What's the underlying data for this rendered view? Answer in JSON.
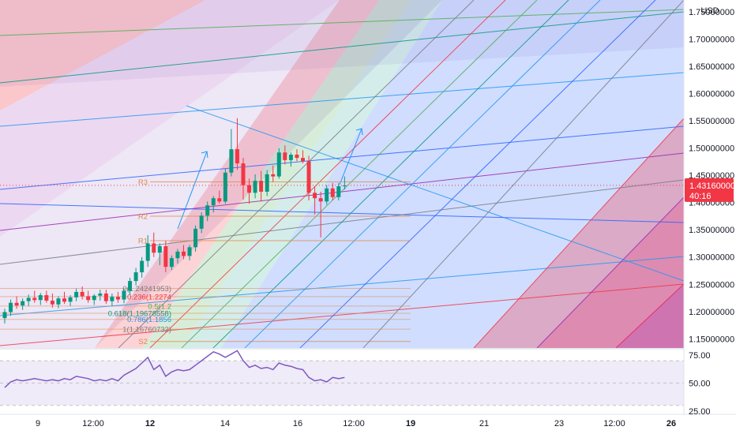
{
  "currency": "USD",
  "chart_data": {
    "type": "candlestick",
    "price_axis": {
      "labels": [
        "1.75000000",
        "1.70000000",
        "1.65000000",
        "1.60000000",
        "1.55000000",
        "1.50000000",
        "1.45000000",
        "1.40000000",
        "1.35000000",
        "1.30000000",
        "1.25000000",
        "1.20000000",
        "1.15000000"
      ],
      "values": [
        1.75,
        1.7,
        1.65,
        1.6,
        1.55,
        1.5,
        1.45,
        1.4,
        1.35,
        1.3,
        1.25,
        1.2,
        1.15
      ],
      "range": [
        1.133,
        1.772
      ]
    },
    "time_axis": {
      "labels": [
        "9",
        "12:00",
        "12",
        "14",
        "16",
        "12:00",
        "19",
        "21",
        "23",
        "12:00",
        "26"
      ],
      "bold": [
        false,
        false,
        true,
        false,
        false,
        false,
        true,
        false,
        false,
        false,
        true
      ]
    },
    "current_price": {
      "value": 1.4316,
      "label": "1.43160000",
      "countdown": "40:16",
      "color": "#f23645"
    },
    "candles": [
      {
        "t": 0,
        "o": 1.188,
        "h": 1.205,
        "l": 1.178,
        "c": 1.199
      },
      {
        "t": 1,
        "o": 1.199,
        "h": 1.222,
        "l": 1.192,
        "c": 1.216
      },
      {
        "t": 2,
        "o": 1.216,
        "h": 1.228,
        "l": 1.205,
        "c": 1.211
      },
      {
        "t": 3,
        "o": 1.211,
        "h": 1.224,
        "l": 1.203,
        "c": 1.219
      },
      {
        "t": 4,
        "o": 1.219,
        "h": 1.231,
        "l": 1.21,
        "c": 1.225
      },
      {
        "t": 5,
        "o": 1.225,
        "h": 1.238,
        "l": 1.216,
        "c": 1.221
      },
      {
        "t": 6,
        "o": 1.221,
        "h": 1.234,
        "l": 1.212,
        "c": 1.23
      },
      {
        "t": 7,
        "o": 1.23,
        "h": 1.238,
        "l": 1.216,
        "c": 1.22
      },
      {
        "t": 8,
        "o": 1.22,
        "h": 1.233,
        "l": 1.207,
        "c": 1.213
      },
      {
        "t": 9,
        "o": 1.213,
        "h": 1.228,
        "l": 1.206,
        "c": 1.224
      },
      {
        "t": 10,
        "o": 1.224,
        "h": 1.236,
        "l": 1.214,
        "c": 1.218
      },
      {
        "t": 11,
        "o": 1.218,
        "h": 1.23,
        "l": 1.21,
        "c": 1.226
      },
      {
        "t": 12,
        "o": 1.226,
        "h": 1.242,
        "l": 1.219,
        "c": 1.236
      },
      {
        "t": 13,
        "o": 1.236,
        "h": 1.246,
        "l": 1.222,
        "c": 1.228
      },
      {
        "t": 14,
        "o": 1.228,
        "h": 1.238,
        "l": 1.216,
        "c": 1.221
      },
      {
        "t": 15,
        "o": 1.221,
        "h": 1.232,
        "l": 1.212,
        "c": 1.229
      },
      {
        "t": 16,
        "o": 1.229,
        "h": 1.24,
        "l": 1.22,
        "c": 1.233
      },
      {
        "t": 17,
        "o": 1.233,
        "h": 1.24,
        "l": 1.214,
        "c": 1.219
      },
      {
        "t": 18,
        "o": 1.219,
        "h": 1.233,
        "l": 1.21,
        "c": 1.227
      },
      {
        "t": 19,
        "o": 1.227,
        "h": 1.236,
        "l": 1.216,
        "c": 1.222
      },
      {
        "t": 20,
        "o": 1.222,
        "h": 1.242,
        "l": 1.215,
        "c": 1.238
      },
      {
        "t": 21,
        "o": 1.238,
        "h": 1.262,
        "l": 1.23,
        "c": 1.256
      },
      {
        "t": 22,
        "o": 1.256,
        "h": 1.28,
        "l": 1.248,
        "c": 1.272
      },
      {
        "t": 23,
        "o": 1.272,
        "h": 1.3,
        "l": 1.262,
        "c": 1.293
      },
      {
        "t": 24,
        "o": 1.293,
        "h": 1.34,
        "l": 1.282,
        "c": 1.325
      },
      {
        "t": 25,
        "o": 1.325,
        "h": 1.345,
        "l": 1.3,
        "c": 1.308
      },
      {
        "t": 26,
        "o": 1.308,
        "h": 1.325,
        "l": 1.285,
        "c": 1.32
      },
      {
        "t": 27,
        "o": 1.32,
        "h": 1.33,
        "l": 1.272,
        "c": 1.282
      },
      {
        "t": 28,
        "o": 1.282,
        "h": 1.303,
        "l": 1.276,
        "c": 1.298
      },
      {
        "t": 29,
        "o": 1.298,
        "h": 1.315,
        "l": 1.288,
        "c": 1.31
      },
      {
        "t": 30,
        "o": 1.31,
        "h": 1.322,
        "l": 1.296,
        "c": 1.302
      },
      {
        "t": 31,
        "o": 1.302,
        "h": 1.322,
        "l": 1.294,
        "c": 1.318
      },
      {
        "t": 32,
        "o": 1.318,
        "h": 1.358,
        "l": 1.31,
        "c": 1.352
      },
      {
        "t": 33,
        "o": 1.352,
        "h": 1.382,
        "l": 1.344,
        "c": 1.376
      },
      {
        "t": 34,
        "o": 1.376,
        "h": 1.402,
        "l": 1.366,
        "c": 1.395
      },
      {
        "t": 35,
        "o": 1.395,
        "h": 1.412,
        "l": 1.382,
        "c": 1.408
      },
      {
        "t": 36,
        "o": 1.408,
        "h": 1.422,
        "l": 1.398,
        "c": 1.402
      },
      {
        "t": 37,
        "o": 1.402,
        "h": 1.462,
        "l": 1.398,
        "c": 1.455
      },
      {
        "t": 38,
        "o": 1.455,
        "h": 1.535,
        "l": 1.448,
        "c": 1.498
      },
      {
        "t": 39,
        "o": 1.498,
        "h": 1.555,
        "l": 1.46,
        "c": 1.472
      },
      {
        "t": 40,
        "o": 1.472,
        "h": 1.482,
        "l": 1.405,
        "c": 1.432
      },
      {
        "t": 41,
        "o": 1.432,
        "h": 1.444,
        "l": 1.398,
        "c": 1.418
      },
      {
        "t": 42,
        "o": 1.418,
        "h": 1.452,
        "l": 1.408,
        "c": 1.44
      },
      {
        "t": 43,
        "o": 1.44,
        "h": 1.458,
        "l": 1.402,
        "c": 1.42
      },
      {
        "t": 44,
        "o": 1.42,
        "h": 1.46,
        "l": 1.412,
        "c": 1.452
      },
      {
        "t": 45,
        "o": 1.452,
        "h": 1.468,
        "l": 1.438,
        "c": 1.448
      },
      {
        "t": 46,
        "o": 1.448,
        "h": 1.5,
        "l": 1.444,
        "c": 1.492
      },
      {
        "t": 47,
        "o": 1.492,
        "h": 1.505,
        "l": 1.47,
        "c": 1.478
      },
      {
        "t": 48,
        "o": 1.478,
        "h": 1.492,
        "l": 1.466,
        "c": 1.488
      },
      {
        "t": 49,
        "o": 1.488,
        "h": 1.498,
        "l": 1.476,
        "c": 1.482
      },
      {
        "t": 50,
        "o": 1.482,
        "h": 1.496,
        "l": 1.472,
        "c": 1.476
      },
      {
        "t": 51,
        "o": 1.476,
        "h": 1.486,
        "l": 1.404,
        "c": 1.418
      },
      {
        "t": 52,
        "o": 1.418,
        "h": 1.43,
        "l": 1.378,
        "c": 1.408
      },
      {
        "t": 53,
        "o": 1.408,
        "h": 1.42,
        "l": 1.336,
        "c": 1.402
      },
      {
        "t": 54,
        "o": 1.402,
        "h": 1.432,
        "l": 1.396,
        "c": 1.426
      },
      {
        "t": 55,
        "o": 1.426,
        "h": 1.436,
        "l": 1.404,
        "c": 1.41
      },
      {
        "t": 56,
        "o": 1.41,
        "h": 1.436,
        "l": 1.404,
        "c": 1.43
      },
      {
        "t": 57,
        "o": 1.43,
        "h": 1.448,
        "l": 1.424,
        "c": 1.4316
      }
    ],
    "pivot_levels": [
      {
        "name": "R3",
        "value": 1.438
      },
      {
        "name": "R2",
        "value": 1.375
      },
      {
        "name": "R1",
        "value": 1.33
      },
      {
        "name": "S2",
        "value": 1.145
      }
    ],
    "fib_labels": [
      {
        "text": "0(1.24241953)",
        "value": 1.2424,
        "color": "#787b86"
      },
      {
        "text": "0.236(1.2274",
        "value": 1.2274,
        "color": "#f23645"
      },
      {
        "text": "0.5(1.2",
        "value": 1.21,
        "color": "#4caf50"
      },
      {
        "text": "0.618(1.19678558)",
        "value": 1.1968,
        "color": "#089981"
      },
      {
        "text": "0.786(1.1856",
        "value": 1.1856,
        "color": "#2196f3"
      },
      {
        "text": "1(1.16760732)",
        "value": 1.1676,
        "color": "#787b86"
      }
    ],
    "rsi": {
      "labels": [
        "75.00",
        "50.00",
        "25.00"
      ],
      "levels": [
        75,
        50,
        25
      ],
      "range": [
        22,
        80
      ],
      "band": [
        30,
        70
      ],
      "values": [
        46,
        51,
        53,
        52,
        53,
        54,
        53,
        52,
        53,
        52,
        54,
        53,
        56,
        55,
        54,
        52,
        53,
        52,
        54,
        52,
        57,
        60,
        63,
        68,
        73,
        62,
        66,
        56,
        60,
        62,
        61,
        62,
        66,
        70,
        74,
        78,
        76,
        73,
        76,
        79,
        70,
        64,
        66,
        63,
        64,
        62,
        68,
        66,
        65,
        63,
        62,
        55,
        52,
        53,
        51,
        55,
        54,
        55
      ]
    }
  }
}
